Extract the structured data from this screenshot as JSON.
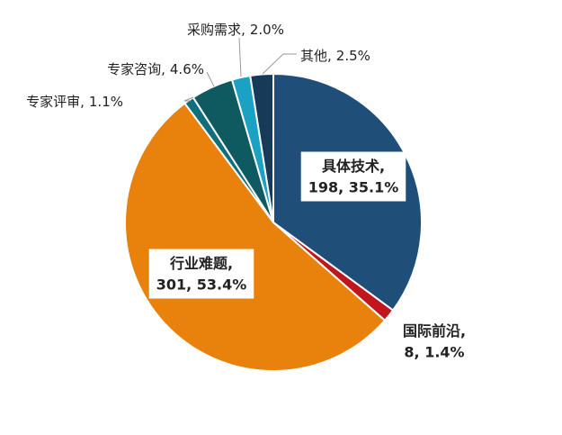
{
  "chart_data": {
    "type": "pie",
    "categories": [
      "具体技术",
      "国际前沿",
      "行业难题",
      "专家评审",
      "专家咨询",
      "采购需求",
      "其他"
    ],
    "values": [
      35.1,
      1.4,
      53.4,
      1.1,
      4.6,
      2.0,
      2.5
    ],
    "value_labels": [
      "198, 35.1%",
      "8, 1.4%",
      "301, 53.4%",
      "1.1%",
      "4.6%",
      "2.0%",
      "2.5%"
    ],
    "separator": ",",
    "colors": [
      "#1f4e79",
      "#c0161e",
      "#e8820c",
      "#0f6f7c",
      "#0f5a60",
      "#1ba1c2",
      "#153a5a"
    ]
  }
}
